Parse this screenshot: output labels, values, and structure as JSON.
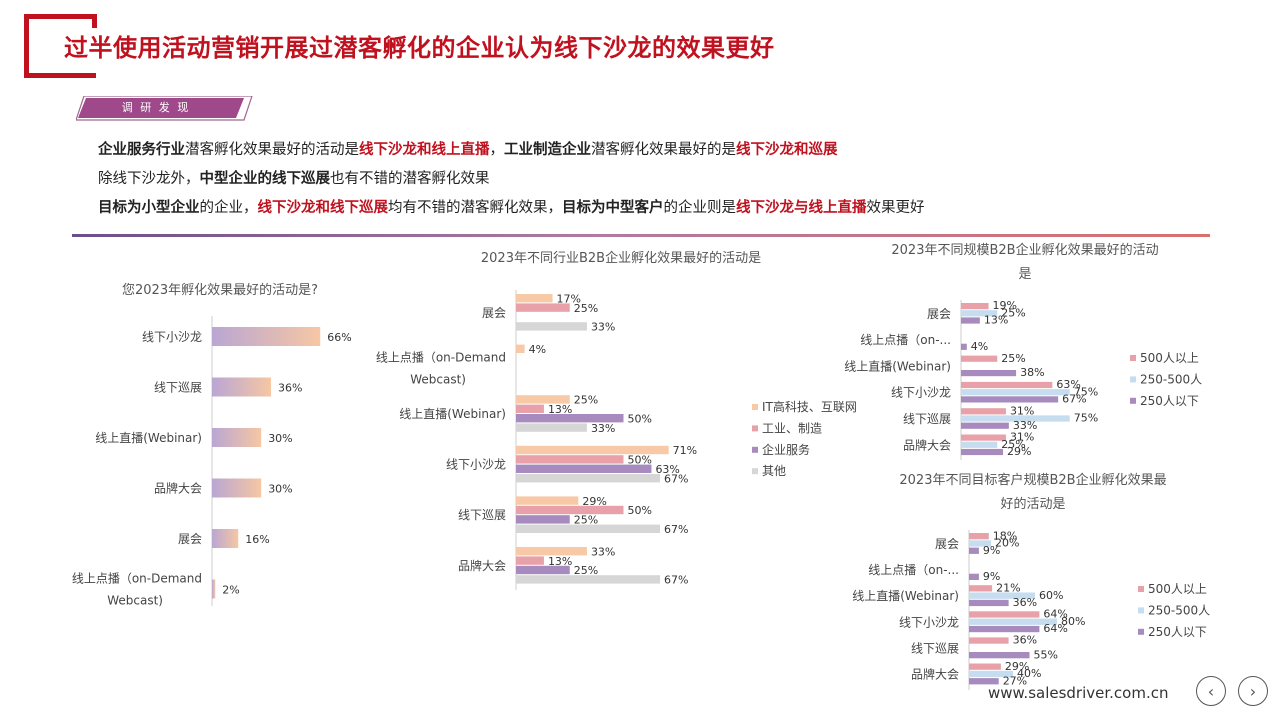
{
  "page": {
    "title": "过半使用活动营销开展过潜客孵化的企业认为线下沙龙的效果更好",
    "tag": "调 研 发 现",
    "url": "www.salesdriver.com.cn",
    "prev_icon": "chevron-left-icon",
    "next_icon": "chevron-right-icon",
    "colors": {
      "brand_red": "#c0111f",
      "purple": "#a78bbf",
      "peach": "#f7c9a6",
      "pink": "#e8a1a8",
      "lightblue": "#c6dcef",
      "grey": "#d6d6d6"
    }
  },
  "findings": {
    "line1": [
      "企业服务行业",
      "潜客孵化效果最好的活动是",
      "线下沙龙和线上直播",
      "，",
      "工业制造企业",
      "潜客孵化效果最好的是",
      "线下沙龙和巡展"
    ],
    "line2": [
      "除线下沙龙外，",
      "中型企业的线下巡展",
      "也有不错的潜客孵化效果"
    ],
    "line3": [
      "目标为小型企业",
      "的企业，",
      "线下沙龙和线下巡展",
      "均有不错的潜客孵化效果，",
      "目标为中型客户",
      "的企业则是",
      "线下沙龙与线上直播",
      "效果更好"
    ]
  },
  "chart_data": [
    {
      "type": "bar",
      "orientation": "horizontal",
      "title": "您2023年孵化效果最好的活动是?",
      "categories": [
        "线下小沙龙",
        "线下巡展",
        "线上直播(Webinar)",
        "品牌大会",
        "展会",
        "线上点播（on-Demand Webcast)"
      ],
      "values": [
        66,
        36,
        30,
        30,
        16,
        2
      ],
      "value_labels": [
        "66%",
        "36%",
        "30%",
        "30%",
        "16%",
        "2%"
      ],
      "xlim": [
        0,
        100
      ]
    },
    {
      "type": "bar",
      "orientation": "horizontal",
      "title": "2023年不同行业B2B企业孵化效果最好的活动是",
      "categories": [
        "展会",
        "线上点播（on-Demand Webcast)",
        "线上直播(Webinar)",
        "线下小沙龙",
        "线下巡展",
        "品牌大会"
      ],
      "series": [
        {
          "name": "IT高科技、互联网",
          "color": "#f7c9a6",
          "values": [
            17,
            4,
            25,
            71,
            29,
            33
          ]
        },
        {
          "name": "工业、制造",
          "color": "#e8a1a8",
          "values": [
            25,
            null,
            13,
            50,
            50,
            13
          ]
        },
        {
          "name": "企业服务",
          "color": "#a78bbf",
          "values": [
            null,
            null,
            50,
            63,
            25,
            25
          ]
        },
        {
          "name": "其他",
          "color": "#d6d6d6",
          "values": [
            33,
            null,
            33,
            67,
            67,
            67
          ]
        }
      ],
      "legend": "right",
      "xlim": [
        0,
        100
      ]
    },
    {
      "type": "bar",
      "orientation": "horizontal",
      "title": "2023年不同规模B2B企业孵化效果最好的活动是",
      "categories": [
        "展会",
        "线上点播（on-...",
        "线上直播(Webinar)",
        "线下小沙龙",
        "线下巡展",
        "品牌大会"
      ],
      "series": [
        {
          "name": "500人以上",
          "color": "#e8a1a8",
          "values": [
            19,
            null,
            25,
            63,
            31,
            31
          ]
        },
        {
          "name": "250-500人",
          "color": "#c6dcef",
          "values": [
            25,
            null,
            null,
            75,
            75,
            25
          ]
        },
        {
          "name": "250人以下",
          "color": "#a78bbf",
          "values": [
            13,
            4,
            38,
            67,
            33,
            29
          ]
        }
      ],
      "legend": "right",
      "xlim": [
        0,
        100
      ]
    },
    {
      "type": "bar",
      "orientation": "horizontal",
      "title": "2023年不同目标客户规模B2B企业孵化效果最好的活动是",
      "categories": [
        "展会",
        "线上点播（on-...",
        "线上直播(Webinar)",
        "线下小沙龙",
        "线下巡展",
        "品牌大会"
      ],
      "series": [
        {
          "name": "500人以上",
          "color": "#e8a1a8",
          "values": [
            18,
            null,
            21,
            64,
            36,
            29
          ]
        },
        {
          "name": "250-500人",
          "color": "#c6dcef",
          "values": [
            20,
            null,
            60,
            80,
            null,
            40
          ]
        },
        {
          "name": "250人以下",
          "color": "#a78bbf",
          "values": [
            9,
            9,
            36,
            64,
            55,
            27
          ]
        }
      ],
      "legend": "right",
      "xlim": [
        0,
        100
      ]
    }
  ]
}
